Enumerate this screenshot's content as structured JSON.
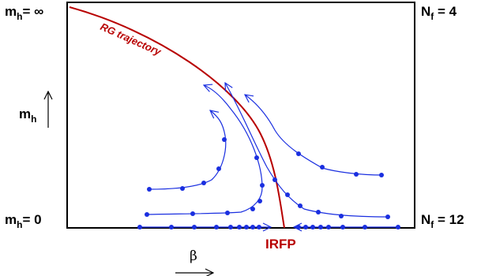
{
  "labels": {
    "mh_top_main": "m",
    "mh_top_sub": "h",
    "mh_top_rest": "= ∞",
    "mh_bottom_main": "m",
    "mh_bottom_sub": "h",
    "mh_bottom_rest": "= 0",
    "mh_axis_main": "m",
    "mh_axis_sub": "h",
    "nf_top_main": "N",
    "nf_top_sub": "f",
    "nf_top_rest": " = 4",
    "nf_bottom_main": "N",
    "nf_bottom_sub": "f",
    "nf_bottom_rest": " = 12",
    "beta": "β",
    "rg_trajectory": "RG trajectory",
    "irfp": "IRFP"
  },
  "colors": {
    "frame": "#000000",
    "rg_curve": "#b80000",
    "flow": "#1a2fe0"
  }
}
